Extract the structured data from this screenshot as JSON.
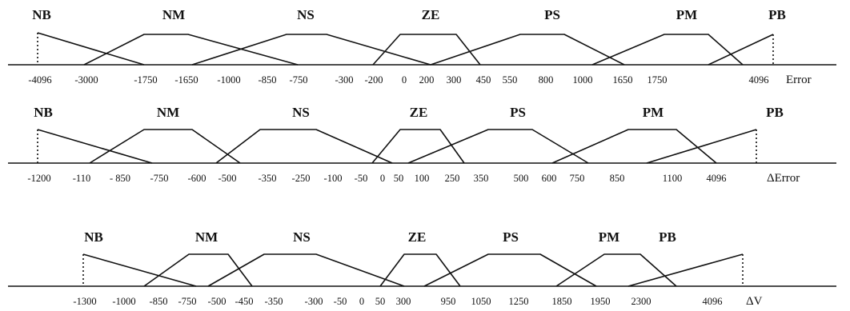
{
  "panels": [
    {
      "id": "error",
      "variable_label": "Error",
      "set_labels": [
        "NB",
        "NM",
        "NS",
        "ZE",
        "PS",
        "PM",
        "PB"
      ],
      "tick_labels": [
        "-4096",
        "-3000",
        "-1750",
        "-1650",
        "-1000",
        "-850",
        "-750",
        "-300",
        "-200",
        "0",
        "200",
        "300",
        "450",
        "550",
        "800",
        "1000",
        "1650",
        "1750",
        "4096"
      ]
    },
    {
      "id": "delta-error",
      "variable_label": "ΔError",
      "set_labels": [
        "NB",
        "NM",
        "NS",
        "ZE",
        "PS",
        "PM",
        "PB"
      ],
      "tick_labels": [
        "-1200",
        "-110",
        "- 850",
        "-750",
        "-600",
        "-500",
        "-350",
        "-250",
        "-100",
        "-50",
        "0",
        "50",
        "100",
        "250",
        "350",
        "500",
        "600",
        "750",
        "850",
        "1100",
        "4096"
      ]
    },
    {
      "id": "delta-v",
      "variable_label": "ΔV",
      "set_labels": [
        "NB",
        "NM",
        "NS",
        "ZE",
        "PS",
        "PM",
        "PB"
      ],
      "tick_labels": [
        "-1300",
        "-1000",
        "-850",
        "-750",
        "-500",
        "-450",
        "-350",
        "-300",
        "-50",
        "0",
        "50",
        "300",
        "950",
        "1050",
        "1250",
        "1850",
        "1950",
        "2300",
        "4096"
      ]
    }
  ]
}
